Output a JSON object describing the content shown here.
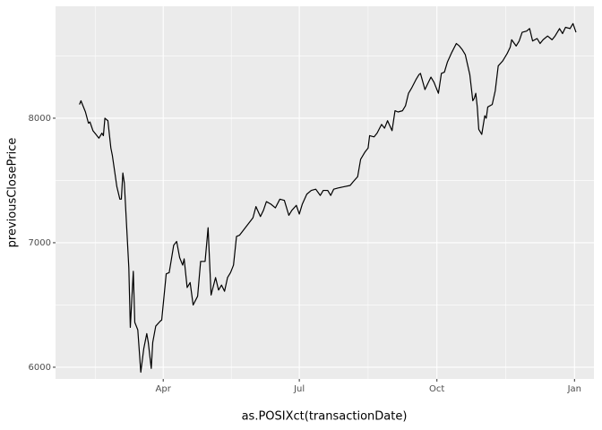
{
  "chart_data": {
    "type": "line",
    "x_label": "as.POSIXct(transactionDate)",
    "y_label": "previousClosePrice",
    "color": "#000000",
    "grid": true,
    "minor_grid": true,
    "xlim": [
      19,
      379
    ],
    "ylim": [
      5906,
      8899
    ],
    "xticks": [
      {
        "value": 91,
        "label": "Apr"
      },
      {
        "value": 182,
        "label": "Jul"
      },
      {
        "value": 274,
        "label": "Oct"
      },
      {
        "value": 366,
        "label": "Jan"
      }
    ],
    "yticks": [
      6000,
      7000,
      8000
    ],
    "x": [
      35,
      36,
      39,
      41,
      42,
      44,
      46,
      48,
      50,
      51,
      52,
      54,
      56,
      57,
      60,
      62,
      63,
      64,
      65,
      68,
      69,
      71,
      72,
      74,
      76,
      78,
      80,
      81,
      83,
      84,
      86,
      89,
      90,
      93,
      95,
      98,
      100,
      102,
      104,
      105,
      107,
      109,
      111,
      114,
      116,
      119,
      121,
      123,
      126,
      128,
      130,
      132,
      134,
      136,
      138,
      140,
      142,
      151,
      153,
      156,
      158,
      160,
      163,
      166,
      169,
      172,
      175,
      177,
      180,
      182,
      184,
      187,
      190,
      193,
      196,
      198,
      201,
      203,
      205,
      208,
      216,
      218,
      221,
      223,
      226,
      228,
      229,
      232,
      234,
      237,
      239,
      241,
      244,
      246,
      248,
      251,
      253,
      255,
      257,
      260,
      262,
      263,
      266,
      268,
      270,
      272,
      273,
      275,
      277,
      279,
      281,
      284,
      287,
      289,
      291,
      293,
      296,
      298,
      299,
      300,
      301,
      302,
      304,
      306,
      307,
      308,
      311,
      313,
      315,
      318,
      321,
      323,
      324,
      327,
      329,
      331,
      334,
      336,
      338,
      341,
      343,
      345,
      348,
      351,
      353,
      356,
      358,
      360,
      363,
      365,
      367
    ],
    "values": [
      8110,
      8140,
      8050,
      7960,
      7970,
      7900,
      7870,
      7840,
      7880,
      7860,
      8000,
      7980,
      7760,
      7700,
      7450,
      7350,
      7350,
      7560,
      7480,
      6800,
      6320,
      6770,
      6360,
      6300,
      5960,
      6150,
      6270,
      6200,
      5990,
      6200,
      6330,
      6370,
      6380,
      6750,
      6760,
      6980,
      7010,
      6880,
      6820,
      6870,
      6640,
      6680,
      6500,
      6570,
      6850,
      6850,
      7120,
      6580,
      6720,
      6620,
      6660,
      6610,
      6720,
      6760,
      6820,
      7050,
      7060,
      7200,
      7290,
      7210,
      7260,
      7330,
      7310,
      7280,
      7350,
      7340,
      7220,
      7260,
      7300,
      7230,
      7310,
      7390,
      7420,
      7430,
      7380,
      7420,
      7420,
      7380,
      7430,
      7440,
      7460,
      7490,
      7530,
      7670,
      7730,
      7760,
      7860,
      7850,
      7880,
      7950,
      7920,
      7980,
      7900,
      8060,
      8050,
      8060,
      8100,
      8200,
      8240,
      8310,
      8350,
      8360,
      8230,
      8280,
      8330,
      8290,
      8260,
      8200,
      8360,
      8370,
      8450,
      8530,
      8600,
      8580,
      8550,
      8510,
      8350,
      8140,
      8160,
      8200,
      8090,
      7910,
      7870,
      8020,
      8000,
      8090,
      8110,
      8220,
      8420,
      8460,
      8520,
      8570,
      8630,
      8580,
      8620,
      8690,
      8700,
      8720,
      8620,
      8640,
      8600,
      8630,
      8660,
      8630,
      8660,
      8720,
      8680,
      8730,
      8720,
      8760,
      8690
    ]
  }
}
